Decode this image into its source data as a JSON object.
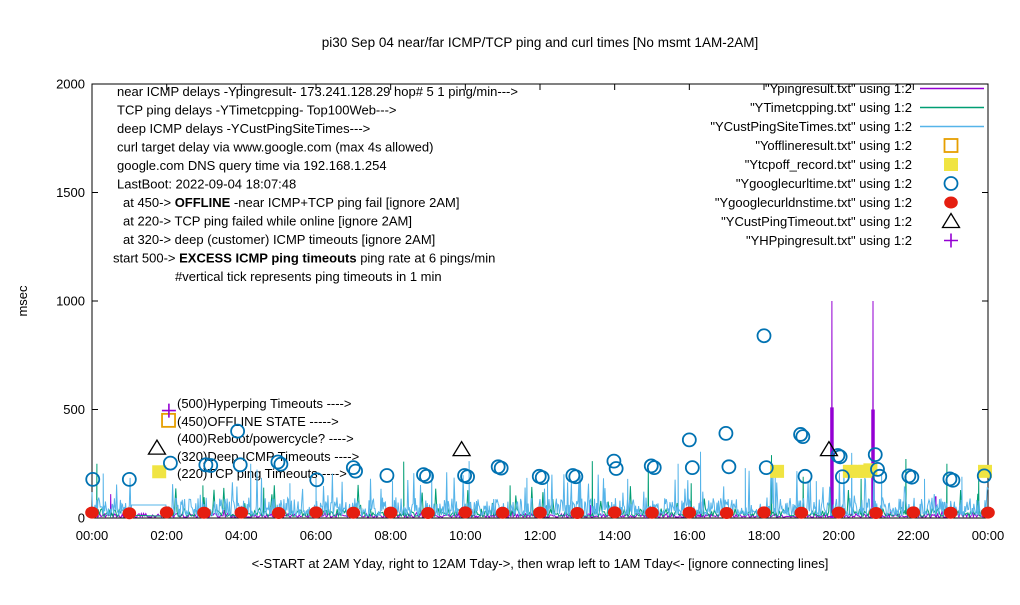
{
  "info_lines": {
    "l0": "near ICMP delays -Ypingresult- 173.241.128.29 hop# 5 1 ping/min--->",
    "l1": "TCP ping delays -YTimetcpping- Top100Web--->",
    "l2": "deep ICMP delays -YCustPingSiteTimes--->",
    "l3": "curl target delay via www.google.com (max 4s allowed)",
    "l4": "google.com DNS query time via 192.168.1.254",
    "l5": "LastBoot: 2022-09-04 18:07:48",
    "l6_pre": "at 450->  ",
    "l6_bold": "OFFLINE",
    "l6_post": " -near ICMP+TCP ping fail [ignore 2AM]",
    "l7": "at 220-> TCP ping failed while online [ignore 2AM]",
    "l8": "at 320-> deep (customer) ICMP timeouts [ignore 2AM]",
    "l9_pre": "start 500->  ",
    "l9_bold": "EXCESS ICMP ping timeouts",
    "l9_post": "  ping rate at 6 pings/min",
    "l10": "#vertical tick represents ping timeouts in 1 min"
  },
  "annotations": [
    {
      "label": "(500)Hyperping Timeouts ---->"
    },
    {
      "label": "(450)OFFLINE STATE ----->"
    },
    {
      "label": "(400)Reboot/powercycle? ---->"
    },
    {
      "label": "(320)Deep ICMP Timeouts ---->"
    },
    {
      "label": "(220)TCP ping Timeouts----->"
    }
  ],
  "chart_data": {
    "type": "line+scatter",
    "title": "pi30 Sep 04  near/far ICMP/TCP ping and curl times [No msmt 1AM-2AM]",
    "xlabel": "<-START at 2AM Yday, right to 12AM Tday->, then wrap left to 1AM Tday<- [ignore connecting lines]",
    "ylabel": "msec",
    "x_range_hours": [
      0,
      24
    ],
    "ylim": [
      0,
      2000
    ],
    "grid": false,
    "legend_position": "top-right-inside",
    "x_tick_values": [
      0,
      2,
      4,
      6,
      8,
      10,
      12,
      14,
      16,
      18,
      20,
      22,
      24
    ],
    "x_tick_labels": [
      "00:00",
      "02:00",
      "04:00",
      "06:00",
      "08:00",
      "10:00",
      "12:00",
      "14:00",
      "16:00",
      "18:00",
      "20:00",
      "22:00",
      "00:00"
    ],
    "y_tick_values": [
      0,
      500,
      1000,
      1500,
      2000
    ],
    "y_tick_labels": [
      "0",
      "500",
      "1000",
      "1500",
      "2000"
    ],
    "no_measurement_gap_hours": [
      1.05,
      2.0
    ],
    "series": [
      {
        "name": "Ypingresult",
        "legend_label": "\"Ypingresult.txt\" using 1:2",
        "type": "line",
        "color": "#9400d3",
        "baseline_msec": [
          4,
          22
        ],
        "spikes": [
          [
            0.5,
            110
          ],
          [
            19.82,
            1000
          ],
          [
            20.92,
            1000
          ]
        ],
        "thick_spikes": [
          [
            19.82,
            510
          ],
          [
            20.92,
            500
          ]
        ],
        "tick_marks": [
          [
            13.35,
            60
          ],
          [
            16.3,
            75
          ],
          [
            22.6,
            100
          ]
        ]
      },
      {
        "name": "YTimetcpping",
        "legend_label": "\"YTimetcpping.txt\" using 1:2",
        "type": "line",
        "color": "#009e73",
        "baseline_msec": [
          8,
          45
        ],
        "gap_hours": [
          1.05,
          2.0
        ],
        "spikes": [
          [
            0.13,
            250
          ],
          [
            2.97,
            150
          ],
          [
            4.6,
            140
          ],
          [
            8.35,
            260
          ],
          [
            11.2,
            150
          ],
          [
            13.4,
            262
          ],
          [
            14.9,
            230
          ],
          [
            16.05,
            160
          ],
          [
            18.2,
            290
          ],
          [
            19.05,
            190
          ],
          [
            20.6,
            180
          ],
          [
            21.8,
            272
          ],
          [
            22.9,
            250
          ],
          [
            23.75,
            180
          ]
        ]
      },
      {
        "name": "YCustPingSiteTimes",
        "legend_label": "\"YCustPingSiteTimes.txt\" using 1:2",
        "type": "line",
        "color": "#56b4e9",
        "baseline_msec": [
          12,
          95
        ],
        "flat_hours": [
          [
            1.05,
            2.0,
            60
          ]
        ],
        "spikes": [
          [
            0.3,
            205
          ],
          [
            4.25,
            250
          ],
          [
            5.3,
            160
          ],
          [
            6.0,
            185
          ],
          [
            8.05,
            170
          ],
          [
            9.1,
            205
          ],
          [
            10.1,
            262
          ],
          [
            11.65,
            185
          ],
          [
            12.2,
            175
          ],
          [
            13.05,
            200
          ],
          [
            14.35,
            180
          ],
          [
            15.7,
            250
          ],
          [
            16.3,
            305
          ],
          [
            17.5,
            230
          ],
          [
            18.3,
            200
          ],
          [
            19.4,
            170
          ],
          [
            20.35,
            300
          ],
          [
            21.15,
            205
          ],
          [
            22.3,
            180
          ],
          [
            23.3,
            190
          ]
        ]
      },
      {
        "name": "Yofflineresult",
        "legend_label": "\"Yofflineresult.txt\" using 1:2",
        "type": "points",
        "marker": "open-square",
        "color": "#e69f00",
        "points": [
          [
            2.05,
            450
          ]
        ]
      },
      {
        "name": "Ytcpoff_record",
        "legend_label": "\"Ytcpoff_record.txt\" using 1:2",
        "type": "points",
        "marker": "filled-square",
        "color": "#f0e442",
        "points": [
          [
            1.8,
            213
          ],
          [
            18.35,
            215
          ],
          [
            20.3,
            215
          ],
          [
            20.5,
            215
          ],
          [
            20.7,
            215
          ],
          [
            20.85,
            222
          ],
          [
            23.92,
            215
          ]
        ]
      },
      {
        "name": "Ygooglecurltime",
        "legend_label": "\"Ygooglecurltime.txt\" using 1:2",
        "type": "points",
        "marker": "open-circle",
        "color": "#0072b2",
        "points": [
          [
            0.02,
            178
          ],
          [
            1.0,
            178
          ],
          [
            2.1,
            253
          ],
          [
            3.05,
            245
          ],
          [
            3.18,
            242
          ],
          [
            3.9,
            400
          ],
          [
            3.97,
            245
          ],
          [
            4.98,
            258
          ],
          [
            5.06,
            248
          ],
          [
            6.02,
            176
          ],
          [
            7.0,
            232
          ],
          [
            7.06,
            216
          ],
          [
            7.9,
            196
          ],
          [
            8.88,
            200
          ],
          [
            8.96,
            192
          ],
          [
            9.98,
            196
          ],
          [
            10.06,
            190
          ],
          [
            10.88,
            236
          ],
          [
            10.96,
            230
          ],
          [
            11.98,
            192
          ],
          [
            12.06,
            186
          ],
          [
            12.88,
            196
          ],
          [
            12.96,
            190
          ],
          [
            13.98,
            262
          ],
          [
            14.04,
            228
          ],
          [
            14.98,
            240
          ],
          [
            15.06,
            232
          ],
          [
            16.0,
            360
          ],
          [
            16.08,
            232
          ],
          [
            16.98,
            390
          ],
          [
            17.06,
            236
          ],
          [
            18.0,
            840
          ],
          [
            18.06,
            232
          ],
          [
            18.98,
            385
          ],
          [
            19.04,
            375
          ],
          [
            19.1,
            192
          ],
          [
            19.98,
            288
          ],
          [
            20.04,
            282
          ],
          [
            20.1,
            190
          ],
          [
            20.98,
            292
          ],
          [
            21.04,
            224
          ],
          [
            21.1,
            192
          ],
          [
            21.88,
            194
          ],
          [
            21.96,
            188
          ],
          [
            22.98,
            180
          ],
          [
            23.06,
            174
          ],
          [
            23.9,
            194
          ]
        ]
      },
      {
        "name": "Ygooglecurldnstime",
        "legend_label": "\"Ygooglecurldnstime.txt\" using 1:2",
        "type": "points",
        "marker": "filled-circle",
        "color": "#e51e10",
        "points": [
          [
            0,
            25
          ],
          [
            1,
            22
          ],
          [
            2,
            26
          ],
          [
            3,
            24
          ],
          [
            4,
            25
          ],
          [
            5,
            23
          ],
          [
            6,
            26
          ],
          [
            7,
            24
          ],
          [
            8,
            25
          ],
          [
            9,
            23
          ],
          [
            10,
            26
          ],
          [
            11,
            24
          ],
          [
            12,
            25
          ],
          [
            13,
            23
          ],
          [
            14,
            26
          ],
          [
            15,
            24
          ],
          [
            16,
            25
          ],
          [
            17,
            23
          ],
          [
            18,
            26
          ],
          [
            19,
            24
          ],
          [
            20,
            25
          ],
          [
            21,
            23
          ],
          [
            22,
            26
          ],
          [
            23,
            24
          ],
          [
            24,
            25
          ]
        ]
      },
      {
        "name": "YCustPingTimeout",
        "legend_label": "\"YCustPingTimeout.txt\" using 1:2",
        "type": "points",
        "marker": "open-triangle",
        "color": "#000000",
        "points": [
          [
            1.74,
            322
          ],
          [
            9.9,
            315
          ],
          [
            19.74,
            315
          ]
        ]
      },
      {
        "name": "YHPpingresult",
        "legend_label": "\"YHPpingresult.txt\" using 1:2",
        "type": "points",
        "marker": "plus",
        "color": "#9400d3",
        "points": [
          [
            2.06,
            495
          ]
        ]
      }
    ]
  }
}
